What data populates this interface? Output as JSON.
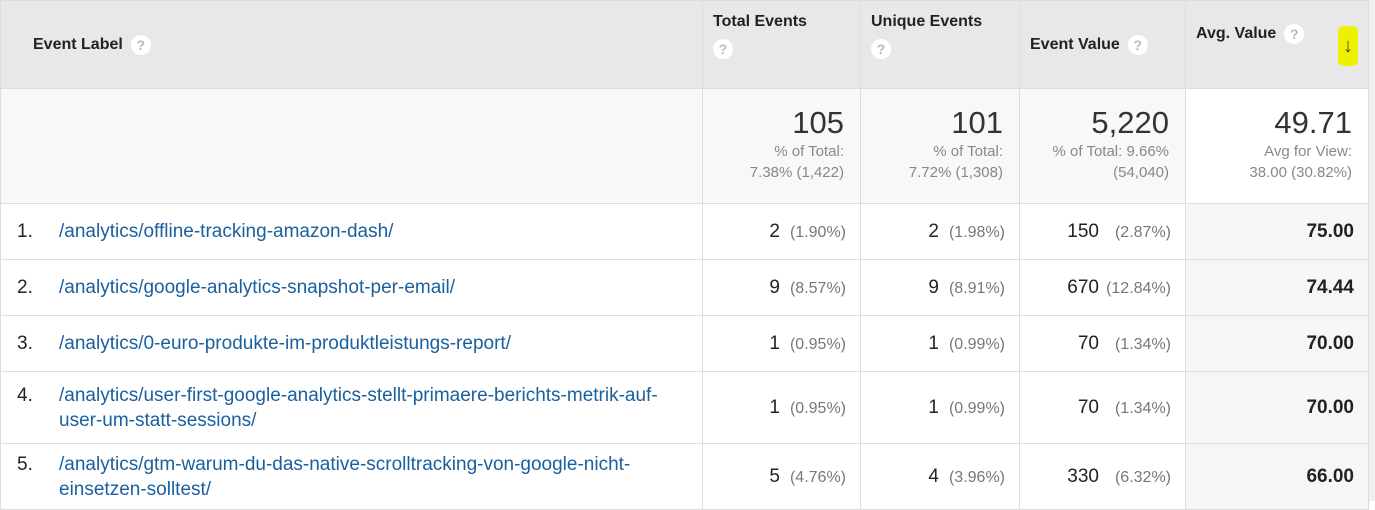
{
  "headers": {
    "label": "Event Label",
    "total": "Total Events",
    "unique": "Unique Events",
    "value": "Event Value",
    "avg": "Avg. Value",
    "help": "?",
    "sort_icon": "↓"
  },
  "summary": {
    "total": {
      "value": "105",
      "l1": "% of Total:",
      "l2": "7.38% (1,422)"
    },
    "unique": {
      "value": "101",
      "l1": "% of Total:",
      "l2": "7.72% (1,308)"
    },
    "value": {
      "value": "5,220",
      "l1": "% of Total: 9.66%",
      "l2": "(54,040)"
    },
    "avg": {
      "value": "49.71",
      "l1": "Avg for View:",
      "l2": "38.00 (30.82%)"
    }
  },
  "rows": [
    {
      "idx": "1.",
      "label": "/analytics/offline-tracking-amazon-dash/",
      "total": "2",
      "total_pct": "(1.90%)",
      "unique": "2",
      "unique_pct": "(1.98%)",
      "value": "150",
      "value_pct": "(2.87%)",
      "avg": "75.00"
    },
    {
      "idx": "2.",
      "label": "/analytics/google-analytics-snapshot-per-email/",
      "total": "9",
      "total_pct": "(8.57%)",
      "unique": "9",
      "unique_pct": "(8.91%)",
      "value": "670",
      "value_pct": "(12.84%)",
      "avg": "74.44"
    },
    {
      "idx": "3.",
      "label": "/analytics/0-euro-produkte-im-produktleistungs-report/",
      "total": "1",
      "total_pct": "(0.95%)",
      "unique": "1",
      "unique_pct": "(0.99%)",
      "value": "70",
      "value_pct": "(1.34%)",
      "avg": "70.00"
    },
    {
      "idx": "4.",
      "label": "/analytics/user-first-google-analytics-stellt-primaere-berichts-metrik-auf-user-um-statt-sessions/",
      "total": "1",
      "total_pct": "(0.95%)",
      "unique": "1",
      "unique_pct": "(0.99%)",
      "value": "70",
      "value_pct": "(1.34%)",
      "avg": "70.00"
    },
    {
      "idx": "5.",
      "label": "/analytics/gtm-warum-du-das-native-scrolltracking-von-google-nicht-einsetzen-solltest/",
      "total": "5",
      "total_pct": "(4.76%)",
      "unique": "4",
      "unique_pct": "(3.96%)",
      "value": "330",
      "value_pct": "(6.32%)",
      "avg": "66.00"
    }
  ]
}
